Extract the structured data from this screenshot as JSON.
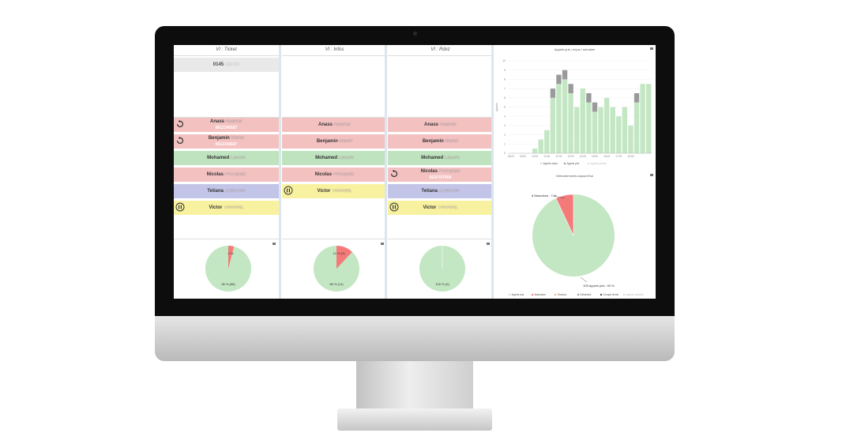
{
  "queues": [
    {
      "header": "VI : Ticket",
      "ticket": "0145",
      "ticket_blurred": "728701",
      "agents": [
        {
          "first": "Anass",
          "last": "Naamar",
          "sub": "0612345687",
          "color": "red",
          "icon": "callback-icon"
        },
        {
          "first": "Benjamin",
          "last": "Martin",
          "sub": "0612345687",
          "color": "red",
          "icon": "callback-icon"
        },
        {
          "first": "Mohamed",
          "last": "Lasuini",
          "sub": "",
          "color": "green",
          "icon": ""
        },
        {
          "first": "Nicolas",
          "last": "Principato",
          "sub": "",
          "color": "red",
          "icon": ""
        },
        {
          "first": "Tetiana",
          "last": "ZUIKOVA",
          "sub": "",
          "color": "blue",
          "icon": ""
        },
        {
          "first": "Victor",
          "last": "TARAIRE",
          "sub": "",
          "color": "yellow",
          "icon": "pause-icon"
        }
      ],
      "pie": {
        "major_label": "96 % (88)",
        "minor_label": "4 %"
      }
    },
    {
      "header": "VI : Infos",
      "ticket": "",
      "agents": [
        {
          "first": "Anass",
          "last": "Naamar",
          "sub": "",
          "color": "red",
          "icon": ""
        },
        {
          "first": "Benjamin",
          "last": "Martin",
          "sub": "",
          "color": "red",
          "icon": ""
        },
        {
          "first": "Mohamed",
          "last": "Lasuini",
          "sub": "",
          "color": "green",
          "icon": ""
        },
        {
          "first": "Nicolas",
          "last": "Principato",
          "sub": "",
          "color": "red",
          "icon": ""
        },
        {
          "first": "Victor",
          "last": "TARAIRE",
          "sub": "",
          "color": "yellow",
          "icon": "pause-icon"
        }
      ],
      "pie": {
        "major_label": "88 % (14)",
        "minor_label": "12 % (2)"
      }
    },
    {
      "header": "VI : Rdvz",
      "ticket": "",
      "agents": [
        {
          "first": "Anass",
          "last": "Naamar",
          "sub": "",
          "color": "red",
          "icon": ""
        },
        {
          "first": "Benjamin",
          "last": "Martin",
          "sub": "",
          "color": "red",
          "icon": ""
        },
        {
          "first": "Mohamed",
          "last": "Lasuini",
          "sub": "",
          "color": "green",
          "icon": ""
        },
        {
          "first": "Nicolas",
          "last": "Principato",
          "sub": "0625767804",
          "color": "red",
          "icon": "callback-icon"
        },
        {
          "first": "Tetiana",
          "last": "ZUIKOVA",
          "sub": "",
          "color": "blue",
          "icon": ""
        },
        {
          "first": "Victor",
          "last": "TARAIRE",
          "sub": "",
          "color": "yellow",
          "icon": "pause-icon"
        }
      ],
      "pie": {
        "major_label": "100 % (0)",
        "minor_label": ""
      }
    }
  ],
  "colors": {
    "taken": "#c3e6c3",
    "abandoned": "#f47a7a",
    "excess": "#9a9a9a"
  },
  "chart_data": [
    {
      "type": "bar",
      "title": "Appels pris / reçus / semaine",
      "categories": [
        "08:00",
        "08:30",
        "09:00",
        "09:30",
        "10:00",
        "10:30",
        "11:00",
        "11:30",
        "12:00",
        "12:30",
        "13:00",
        "13:30",
        "14:00",
        "14:30",
        "15:00",
        "15:30",
        "16:00",
        "16:30",
        "17:00",
        "17:30",
        "18:00",
        "18:30",
        "19:00",
        "19:30"
      ],
      "x_tick_labels": [
        "08:00",
        "09:00",
        "10:00",
        "11:00",
        "12:00",
        "13:00",
        "14:00",
        "15:00",
        "16:00",
        "17:00",
        "18:00"
      ],
      "y_tick_labels": [
        "0",
        "1",
        "2",
        "3",
        "4",
        "5",
        "6",
        "7",
        "8",
        "9",
        "10"
      ],
      "series": [
        {
          "name": "Appels reçus",
          "values": [
            0,
            0,
            0,
            0,
            0.5,
            1.5,
            2.5,
            6,
            7.5,
            8,
            6.5,
            5,
            7,
            5.5,
            4.5,
            5,
            6,
            5,
            4,
            5,
            3,
            5.5,
            7.5,
            7.5
          ]
        },
        {
          "name": "Appels pris",
          "values": [
            0,
            0,
            0,
            0,
            0,
            0,
            0,
            1,
            1,
            1,
            1,
            0,
            0,
            1,
            1,
            0,
            0,
            0,
            0,
            0,
            0,
            1,
            0,
            0
          ]
        }
      ],
      "legend": [
        "Appels reçus",
        "Appels pris",
        "Appels perdus"
      ],
      "ylim": [
        0,
        10
      ]
    },
    {
      "type": "pie",
      "title": "Débordements aujourd'hui",
      "slices": [
        {
          "name": "Appels pris",
          "value": 93,
          "label": "105 Appels pris : 93 %"
        },
        {
          "name": "Abandons",
          "value": 7,
          "label": "8 Abandons : 7 %"
        }
      ],
      "legend": [
        "Appels pris",
        "Abandons",
        "Timeout",
        "Débordés",
        "Groupe fermé",
        "Appels sortants"
      ]
    }
  ]
}
